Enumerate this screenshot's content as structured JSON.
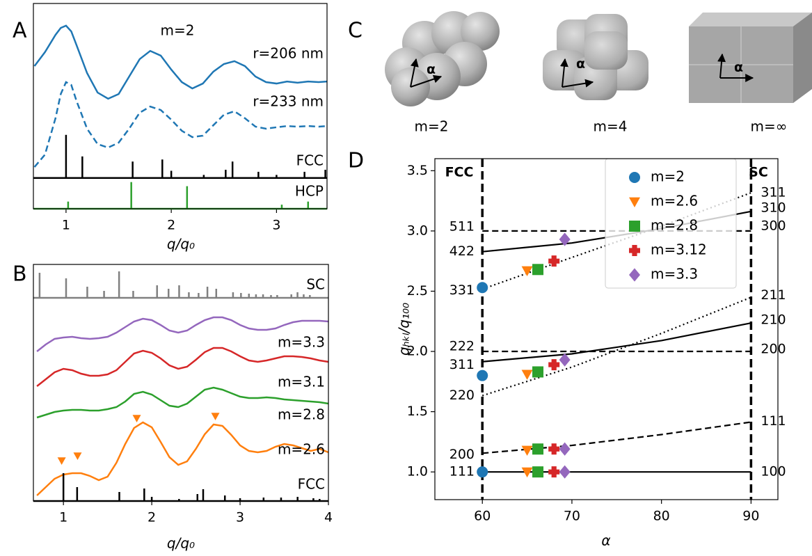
{
  "chart_data": [
    {
      "panel": "A",
      "type": "line",
      "title": "m=2",
      "xlabel": "q/q₀",
      "xlim": [
        0.69,
        3.48
      ],
      "ylim": [
        0,
        10
      ],
      "xticks": [
        1,
        2,
        3
      ],
      "series": [
        {
          "name": "r=206 nm",
          "color": "#1f77b4",
          "style": "solid",
          "x": [
            0.7,
            0.8,
            0.9,
            0.95,
            1.0,
            1.05,
            1.1,
            1.2,
            1.3,
            1.4,
            1.5,
            1.6,
            1.7,
            1.8,
            1.9,
            2.0,
            2.1,
            2.2,
            2.3,
            2.4,
            2.5,
            2.6,
            2.7,
            2.8,
            2.9,
            3.0,
            3.1,
            3.2,
            3.3,
            3.4,
            3.48
          ],
          "values": [
            6.95,
            7.63,
            8.47,
            8.81,
            8.92,
            8.64,
            7.97,
            6.61,
            5.66,
            5.36,
            5.59,
            6.44,
            7.29,
            7.69,
            7.46,
            6.78,
            6.17,
            5.86,
            6.1,
            6.68,
            7.05,
            7.19,
            6.95,
            6.44,
            6.17,
            6.1,
            6.2,
            6.14,
            6.2,
            6.17,
            6.2
          ]
        },
        {
          "name": "r=233 nm",
          "color": "#1f77b4",
          "style": "dashed",
          "x": [
            0.7,
            0.8,
            0.9,
            0.95,
            1.0,
            1.05,
            1.1,
            1.2,
            1.3,
            1.4,
            1.5,
            1.6,
            1.7,
            1.8,
            1.9,
            2.0,
            2.1,
            2.2,
            2.3,
            2.4,
            2.5,
            2.6,
            2.7,
            2.8,
            2.9,
            3.0,
            3.1,
            3.2,
            3.3,
            3.4,
            3.48
          ],
          "values": [
            2.03,
            2.64,
            4.41,
            5.59,
            6.17,
            6.03,
            5.25,
            3.9,
            3.15,
            2.98,
            3.22,
            3.9,
            4.68,
            4.98,
            4.81,
            4.34,
            3.8,
            3.49,
            3.56,
            4.07,
            4.58,
            4.75,
            4.41,
            4.0,
            3.9,
            3.97,
            4.03,
            4.0,
            4.03,
            4.0,
            4.03
          ]
        },
        {
          "name": "FCC",
          "color": "#000000",
          "style": "stick",
          "baseline": 1.5,
          "x": [
            1,
            1.155,
            1.633,
            1.915,
            2,
            2.309,
            2.517,
            2.582,
            2.828,
            3,
            3.266,
            3.464
          ],
          "values": [
            2.1,
            1.05,
            0.8,
            0.9,
            0.35,
            0.15,
            0.4,
            0.8,
            0.3,
            0.15,
            0.3,
            0.4
          ]
        },
        {
          "name": "HCP",
          "color": "#2ca02c",
          "style": "stick",
          "baseline": 0,
          "x": [
            1.02,
            1.62,
            2.15,
            3.05,
            3.3
          ],
          "values": [
            0.35,
            1.3,
            1.1,
            0.2,
            0.35
          ]
        }
      ]
    },
    {
      "panel": "B",
      "type": "line",
      "xlabel": "q/q₀",
      "xlim": [
        0.66,
        4.0
      ],
      "ylim": [
        0,
        34
      ],
      "xticks": [
        1,
        2,
        3,
        4
      ],
      "series": [
        {
          "name": "SC",
          "color": "#808080",
          "style": "stick",
          "baseline": 29.2,
          "x": [
            0.73,
            1.03,
            1.27,
            1.46,
            1.63,
            1.79,
            2.06,
            2.19,
            2.31,
            2.42,
            2.53,
            2.63,
            2.73,
            2.92,
            3.01,
            3.1,
            3.18,
            3.26,
            3.35,
            3.42,
            3.58,
            3.65,
            3.72,
            3.79
          ],
          "values": [
            3.6,
            2.8,
            1.6,
            1,
            3.8,
            1,
            1.8,
            1.3,
            1.8,
            0.8,
            0.7,
            1.6,
            1.3,
            0.8,
            0.7,
            0.6,
            0.5,
            0.5,
            0.4,
            0.4,
            0.5,
            0.8,
            0.5,
            0.4
          ]
        },
        {
          "name": "m=3.3",
          "color": "#9467bd",
          "style": "solid",
          "x": [
            0.7,
            0.8,
            0.9,
            1.0,
            1.1,
            1.2,
            1.3,
            1.4,
            1.5,
            1.6,
            1.7,
            1.8,
            1.9,
            2.0,
            2.1,
            2.2,
            2.3,
            2.4,
            2.5,
            2.6,
            2.7,
            2.8,
            2.9,
            3.0,
            3.1,
            3.2,
            3.3,
            3.4,
            3.5,
            3.6,
            3.7,
            3.8,
            3.9,
            4.0
          ],
          "values": [
            21.5,
            22.5,
            23.3,
            23.5,
            23.6,
            23.4,
            23.3,
            23.4,
            23.6,
            24.2,
            25,
            25.8,
            26.2,
            26,
            25.3,
            24.5,
            24.2,
            24.5,
            25.3,
            26,
            26.4,
            26.4,
            26,
            25.3,
            24.8,
            24.6,
            24.6,
            24.8,
            25.3,
            25.7,
            25.9,
            25.9,
            25.9,
            25.8
          ]
        },
        {
          "name": "m=3.1",
          "color": "#d62728",
          "style": "solid",
          "x": [
            0.7,
            0.8,
            0.9,
            1.0,
            1.1,
            1.2,
            1.3,
            1.4,
            1.5,
            1.6,
            1.7,
            1.8,
            1.9,
            2.0,
            2.1,
            2.2,
            2.3,
            2.4,
            2.5,
            2.6,
            2.7,
            2.8,
            2.9,
            3.0,
            3.1,
            3.2,
            3.3,
            3.4,
            3.5,
            3.6,
            3.7,
            3.8,
            3.9,
            4.0
          ],
          "values": [
            16.5,
            17.5,
            18.5,
            19,
            18.8,
            18.3,
            18,
            18,
            18.2,
            18.8,
            20,
            21.2,
            21.6,
            21.3,
            20.5,
            19.5,
            19,
            19.3,
            20.3,
            21.4,
            22,
            22,
            21.5,
            20.8,
            20.2,
            20,
            20.2,
            20.5,
            20.8,
            20.8,
            20.7,
            20.5,
            20.2,
            20
          ]
        },
        {
          "name": "m=2.8",
          "color": "#2ca02c",
          "style": "solid",
          "x": [
            0.7,
            0.8,
            0.9,
            1.0,
            1.1,
            1.2,
            1.3,
            1.4,
            1.5,
            1.6,
            1.7,
            1.8,
            1.9,
            2.0,
            2.1,
            2.2,
            2.3,
            2.4,
            2.5,
            2.6,
            2.7,
            2.8,
            2.9,
            3.0,
            3.1,
            3.2,
            3.3,
            3.4,
            3.5,
            3.6,
            3.7,
            3.8,
            3.9,
            4.0
          ],
          "values": [
            12,
            12.4,
            12.8,
            13,
            13.1,
            13.1,
            13,
            13,
            13.2,
            13.5,
            14.3,
            15.4,
            15.7,
            15.3,
            14.5,
            13.7,
            13.5,
            14,
            15,
            16,
            16.3,
            16,
            15.5,
            15,
            14.8,
            14.8,
            14.9,
            14.8,
            14.6,
            14.5,
            14.4,
            14.3,
            14.2,
            14
          ]
        },
        {
          "name": "m=2.6",
          "color": "#ff7f0e",
          "style": "solid",
          "x": [
            0.7,
            0.8,
            0.9,
            1.0,
            1.1,
            1.2,
            1.3,
            1.4,
            1.5,
            1.6,
            1.7,
            1.8,
            1.9,
            2.0,
            2.1,
            2.2,
            2.3,
            2.4,
            2.5,
            2.6,
            2.7,
            2.8,
            2.9,
            3.0,
            3.1,
            3.2,
            3.3,
            3.4,
            3.5,
            3.6,
            3.7,
            3.8,
            3.9,
            4.0
          ],
          "values": [
            0.8,
            2,
            3.2,
            3.8,
            4,
            4,
            3.6,
            3,
            3.5,
            5.5,
            8.2,
            10.5,
            11.3,
            10.6,
            8.5,
            6.3,
            5.2,
            5.7,
            7.5,
            9.6,
            11,
            10.8,
            9.5,
            8,
            7.2,
            7,
            7.2,
            7.8,
            8.2,
            8,
            7.6,
            7.2,
            7.5,
            7
          ]
        },
        {
          "color": "#ff7f0e",
          "style": "marker",
          "marker": "triangle",
          "x": [
            0.98,
            1.16,
            1.83,
            2.72
          ],
          "values": [
            5.8,
            6.5,
            11.9,
            12.2
          ]
        },
        {
          "name": "FCC",
          "color": "#000000",
          "style": "stick",
          "baseline": 0,
          "x": [
            1,
            1.155,
            1.633,
            1.915,
            2,
            2.309,
            2.517,
            2.582,
            2.828,
            3,
            3.266,
            3.464,
            3.651,
            3.83,
            3.9
          ],
          "values": [
            4,
            2,
            1.3,
            1.8,
            0.6,
            0.3,
            1,
            1.7,
            0.8,
            0.4,
            0.5,
            0.5,
            0.6,
            0.4,
            0.3
          ]
        }
      ]
    },
    {
      "panel": "D",
      "type": "scatter",
      "xlabel": "α",
      "ylabel": "qₕₖₗ/q₁₀₀",
      "xlim": [
        54.7,
        93.0
      ],
      "ylim": [
        0.77,
        3.6
      ],
      "xticks": [
        60,
        70,
        80,
        90
      ],
      "yticks": [
        {
          "value": 1,
          "label": "1.0"
        },
        {
          "value": 1.5,
          "label": "1.5"
        },
        {
          "value": 2,
          "label": "2.0"
        },
        {
          "value": 2.5,
          "label": "2.5"
        },
        {
          "value": 3,
          "label": "3.0"
        },
        {
          "value": 3.5,
          "label": "3.5"
        }
      ],
      "vlines": [
        60,
        90
      ],
      "annotations": [
        "FCC",
        "SC"
      ],
      "lines": [
        {
          "style": "solid",
          "x": [
            60,
            70,
            80,
            90
          ],
          "values": [
            1,
            1,
            1,
            1
          ],
          "left_label": "111",
          "right_label": "100"
        },
        {
          "style": "dashed",
          "x": [
            60,
            70,
            80,
            90
          ],
          "values": [
            1.155,
            1.22,
            1.31,
            1.414
          ],
          "left_label": "200",
          "right_label": "111"
        },
        {
          "style": "dotted",
          "x": [
            60,
            70,
            80,
            90
          ],
          "values": [
            1.633,
            1.87,
            2.15,
            2.449
          ],
          "left_label": "220",
          "right_label": "211"
        },
        {
          "style": "solid",
          "x": [
            60,
            70,
            80,
            90
          ],
          "values": [
            1.915,
            1.98,
            2.09,
            2.236
          ],
          "left_label": "311",
          "right_label": "210"
        },
        {
          "style": "dashed",
          "x": [
            60,
            70,
            80,
            90
          ],
          "values": [
            2,
            2,
            2,
            2
          ],
          "left_label": "222",
          "right_label": "200"
        },
        {
          "style": "dotted",
          "x": [
            60,
            70,
            80,
            90
          ],
          "values": [
            2.517,
            2.78,
            3.04,
            3.317
          ],
          "left_label": "331",
          "right_label": "311"
        },
        {
          "style": "solid",
          "x": [
            60,
            70,
            80,
            90
          ],
          "values": [
            2.828,
            2.9,
            3.02,
            3.162
          ],
          "left_label": "422",
          "right_label": "310"
        },
        {
          "style": "dashed",
          "x": [
            60,
            70,
            80,
            90
          ],
          "values": [
            3,
            3,
            3,
            3
          ],
          "left_label": "511",
          "right_label": "300"
        }
      ],
      "series": [
        {
          "name": "m=2",
          "color": "#1f77b4",
          "marker": "circle",
          "x": [
            60,
            60,
            60
          ],
          "values": [
            1,
            1.8,
            2.53
          ]
        },
        {
          "name": "m=2.6",
          "color": "#ff7f0e",
          "marker": "triangle",
          "x": [
            65,
            65,
            65,
            65
          ],
          "values": [
            1,
            1.18,
            1.81,
            2.67
          ]
        },
        {
          "name": "m=2.8",
          "color": "#2ca02c",
          "marker": "square",
          "x": [
            66.2,
            66.2,
            66.2,
            66.2
          ],
          "values": [
            1,
            1.19,
            1.83,
            2.68
          ]
        },
        {
          "name": "m=3.12",
          "color": "#d62728",
          "marker": "plus",
          "x": [
            68,
            68,
            68,
            68
          ],
          "values": [
            1,
            1.19,
            1.89,
            2.75
          ]
        },
        {
          "name": "m=3.3",
          "color": "#9467bd",
          "marker": "diamond",
          "x": [
            69.2,
            69.2,
            69.2,
            69.2
          ],
          "values": [
            1,
            1.19,
            1.93,
            2.93
          ]
        }
      ]
    }
  ],
  "panel_c": {
    "label": "C",
    "items": [
      {
        "caption": "m=2",
        "angle_label": "α"
      },
      {
        "caption": "m=4",
        "angle_label": "α"
      },
      {
        "caption": "m=∞",
        "angle_label": "α"
      }
    ]
  }
}
